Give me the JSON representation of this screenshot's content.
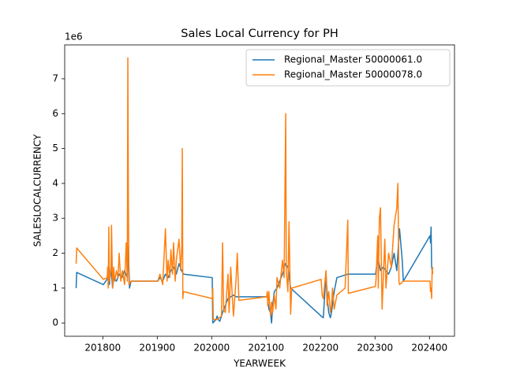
{
  "chart_data": {
    "type": "line",
    "title": "Sales Local Currency for PH",
    "x_label": "YEARWEEK",
    "y_label": "SALESLOCALCURRENCY",
    "y_offset_label": "1e6",
    "xlim": [
      201730,
      202446
    ],
    "xticks": [
      201800,
      201900,
      202000,
      202100,
      202200,
      202300,
      202400
    ],
    "ylim": [
      -0.38,
      7.97
    ],
    "yticks": [
      0,
      1,
      2,
      3,
      4,
      5,
      6,
      7
    ],
    "grid": false,
    "legend": "upper right",
    "series": [
      {
        "name": "Regional_Master 50000061.0",
        "color": "#1f77b4",
        "x": [
          201751,
          201752,
          201801,
          201810,
          201812,
          201815,
          201818,
          201820,
          201825,
          201830,
          201835,
          201840,
          201845,
          201847,
          201849,
          201852,
          201901,
          201905,
          201910,
          201915,
          201920,
          201925,
          201930,
          201935,
          201940,
          201945,
          201948,
          202001,
          202002,
          202005,
          202008,
          202010,
          202012,
          202015,
          202020,
          202025,
          202030,
          202040,
          202045,
          202101,
          202102,
          202105,
          202108,
          202110,
          202112,
          202115,
          202120,
          202125,
          202130,
          202135,
          202140,
          202145,
          202201,
          202205,
          202210,
          202213,
          202215,
          202218,
          202220,
          202225,
          202230,
          202250,
          202301,
          202305,
          202310,
          202315,
          202320,
          202325,
          202330,
          202335,
          202340,
          202345,
          202350,
          202352,
          202401,
          202402,
          202403,
          202404,
          202405,
          202406
        ],
        "values": [
          1.0,
          1.45,
          1.1,
          1.3,
          1.1,
          1.6,
          1.0,
          1.3,
          1.2,
          1.4,
          1.3,
          1.5,
          1.3,
          2.2,
          1.0,
          1.2,
          1.2,
          1.3,
          1.2,
          1.4,
          1.3,
          1.5,
          1.6,
          1.4,
          1.7,
          1.5,
          1.4,
          1.3,
          0.0,
          0.05,
          0.1,
          0.2,
          0.1,
          0.05,
          0.3,
          0.5,
          0.7,
          0.8,
          0.75,
          0.75,
          0.8,
          0.4,
          0.3,
          0.0,
          0.5,
          0.9,
          1.0,
          1.2,
          1.4,
          1.7,
          1.6,
          1.0,
          0.2,
          0.15,
          1.4,
          0.6,
          0.3,
          0.15,
          0.3,
          0.9,
          1.3,
          1.4,
          1.4,
          1.9,
          1.5,
          1.6,
          1.5,
          1.4,
          1.6,
          2.0,
          1.5,
          2.7,
          1.8,
          1.2,
          2.5,
          2.3,
          2.75,
          1.6,
          1.5,
          1.6
        ]
      },
      {
        "name": "Regional_Master 50000078.0",
        "color": "#ff7f0e",
        "x": [
          201751,
          201752,
          201801,
          201808,
          201809,
          201810,
          201811,
          201812,
          201815,
          201816,
          201818,
          201820,
          201822,
          201825,
          201828,
          201830,
          201833,
          201836,
          201840,
          201843,
          201845,
          201846,
          201847,
          201848,
          201852,
          201901,
          201905,
          201910,
          201915,
          201918,
          201920,
          201923,
          201925,
          201928,
          201930,
          201933,
          201935,
          201940,
          201943,
          201945,
          201946,
          201947,
          201948,
          202001,
          202002,
          202003,
          202010,
          202018,
          202020,
          202022,
          202025,
          202030,
          202032,
          202035,
          202038,
          202040,
          202045,
          202047,
          202050,
          202101,
          202102,
          202103,
          202105,
          202108,
          202110,
          202112,
          202115,
          202118,
          202120,
          202125,
          202130,
          202133,
          202136,
          202137,
          202140,
          202142,
          202145,
          202147,
          202201,
          202203,
          202205,
          202210,
          202212,
          202215,
          202218,
          202220,
          202222,
          202225,
          202230,
          202245,
          202250,
          202251,
          202301,
          202302,
          202305,
          202306,
          202308,
          202310,
          202313,
          202315,
          202318,
          202320,
          202325,
          202330,
          202335,
          202340,
          202342,
          202344,
          202345,
          202352,
          202401,
          202402,
          202403,
          202404,
          202405,
          202406
        ],
        "values": [
          1.7,
          2.15,
          1.25,
          1.3,
          1.6,
          1.0,
          2.75,
          1.2,
          1.5,
          2.8,
          1.0,
          1.6,
          1.2,
          1.5,
          1.3,
          2.0,
          1.2,
          1.5,
          1.1,
          2.3,
          1.2,
          7.6,
          3.5,
          1.1,
          1.2,
          1.2,
          1.4,
          1.1,
          2.7,
          1.2,
          1.8,
          1.3,
          2.1,
          1.4,
          2.3,
          1.2,
          1.8,
          2.4,
          1.5,
          2.2,
          5.0,
          0.7,
          0.9,
          0.7,
          1.0,
          0.1,
          0.1,
          0.2,
          2.3,
          0.4,
          0.3,
          1.4,
          0.3,
          1.6,
          0.7,
          0.2,
          1.3,
          2.0,
          0.65,
          0.75,
          0.9,
          0.5,
          0.9,
          0.2,
          0.6,
          0.3,
          0.8,
          0.4,
          1.3,
          1.0,
          1.8,
          1.3,
          6.0,
          1.5,
          0.9,
          2.9,
          0.25,
          1.0,
          1.25,
          0.8,
          0.7,
          1.5,
          0.5,
          0.9,
          0.3,
          0.5,
          1.0,
          0.4,
          0.8,
          1.0,
          2.95,
          0.85,
          1.05,
          1.3,
          2.5,
          1.0,
          3.0,
          3.3,
          0.4,
          1.2,
          2.4,
          1.0,
          2.0,
          1.6,
          2.8,
          3.3,
          4.0,
          1.2,
          1.1,
          1.2,
          1.2,
          0.9,
          1.0,
          0.7,
          1.6,
          1.4
        ]
      }
    ]
  }
}
